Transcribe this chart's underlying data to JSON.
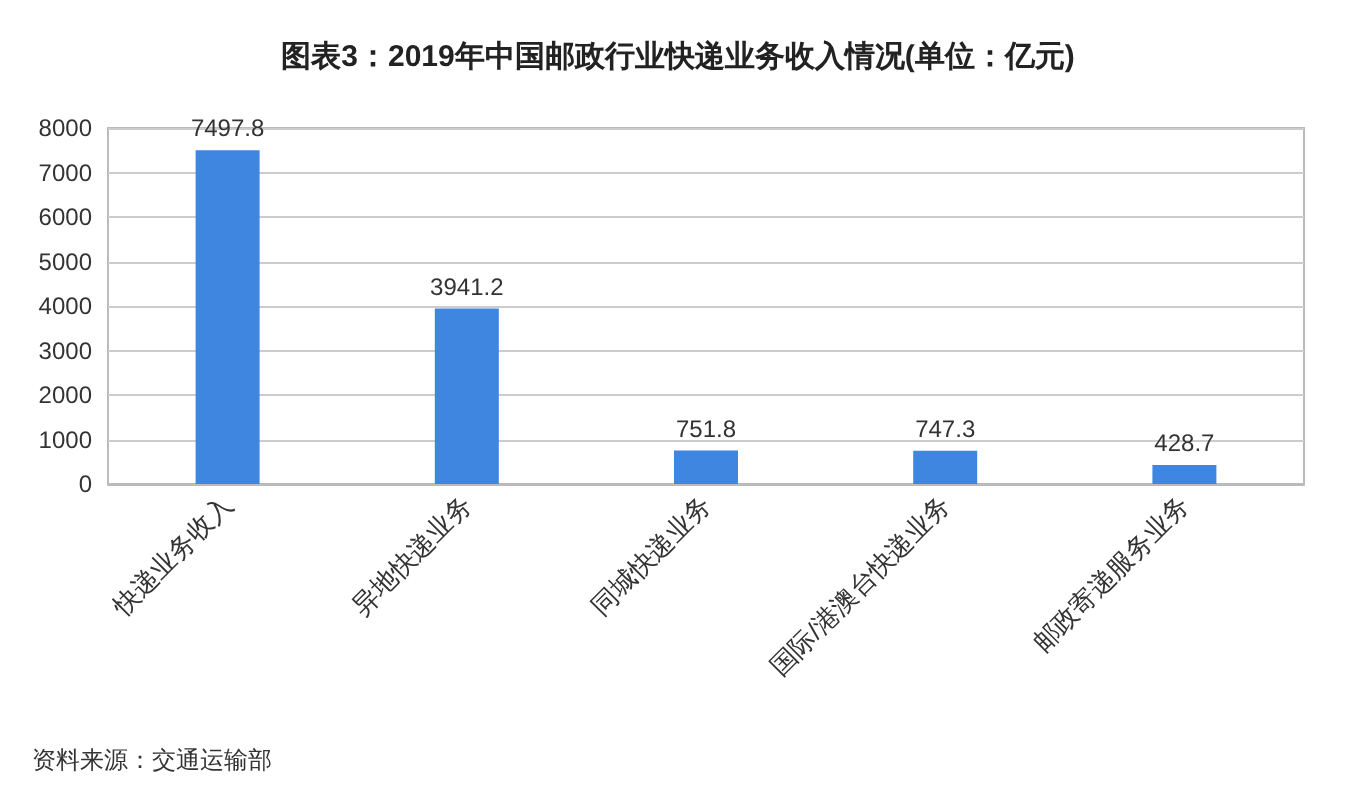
{
  "chart_data": {
    "type": "bar",
    "title": "图表3：2019年中国邮政行业快递业务收入情况(单位：亿元)",
    "categories": [
      "快递业务收入",
      "异地快递业务",
      "同城快递业务",
      "国际/港澳台快递业务",
      "邮政寄递服务业务"
    ],
    "values": [
      7497.8,
      3941.2,
      751.8,
      747.3,
      428.7
    ],
    "color": "#3f86e0",
    "ylim": [
      0,
      8000
    ],
    "yticks": [
      0,
      1000,
      2000,
      3000,
      4000,
      5000,
      6000,
      7000,
      8000
    ],
    "grid": true,
    "data_labels": true,
    "annotations": [
      "资料来源：交通运输部"
    ]
  }
}
